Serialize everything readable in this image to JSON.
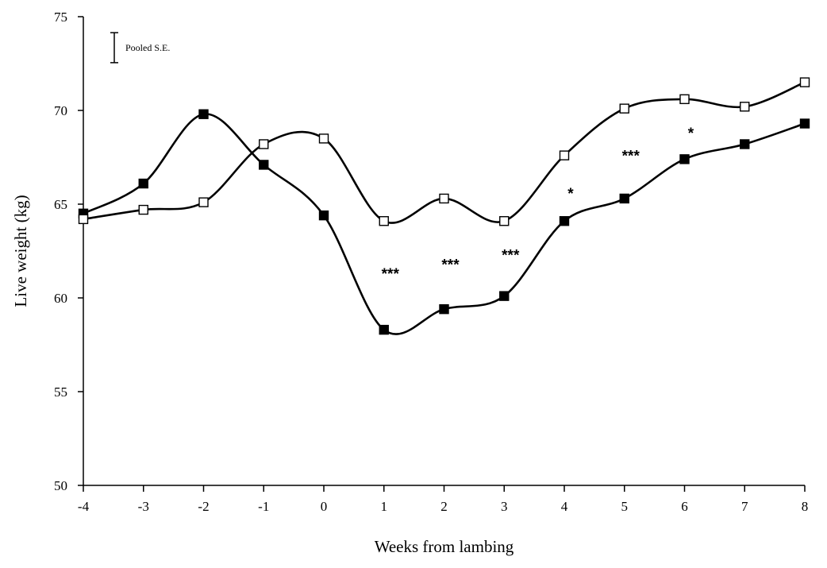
{
  "chart_data": {
    "type": "line",
    "title": "",
    "xlabel": "Weeks from lambing",
    "ylabel": "Live weight (kg)",
    "x": [
      -4,
      -3,
      -2,
      -1,
      0,
      1,
      2,
      3,
      4,
      5,
      6,
      7,
      8
    ],
    "xlim": [
      -4,
      8
    ],
    "ylim": [
      50,
      75
    ],
    "yticks": [
      50,
      55,
      60,
      65,
      70,
      75
    ],
    "grid": false,
    "series": [
      {
        "marker": "filled-square",
        "color": "#000000",
        "values": [
          64.5,
          66.1,
          69.8,
          67.1,
          64.4,
          58.3,
          59.4,
          60.1,
          64.1,
          65.3,
          67.4,
          68.2,
          69.3
        ]
      },
      {
        "marker": "open-square",
        "color": "#000000",
        "values": [
          64.2,
          64.7,
          65.1,
          68.2,
          68.5,
          64.1,
          65.3,
          64.1,
          67.6,
          70.1,
          70.6,
          70.2,
          71.5
        ]
      }
    ],
    "annotations": [
      {
        "text": "***",
        "x": 1,
        "y": 61.6
      },
      {
        "text": "***",
        "x": 2,
        "y": 62.1
      },
      {
        "text": "***",
        "x": 3,
        "y": 62.6
      },
      {
        "text": "*",
        "x": 4,
        "y": 65.9
      },
      {
        "text": "***",
        "x": 5,
        "y": 67.9
      },
      {
        "text": "*",
        "x": 6,
        "y": 69.1
      }
    ],
    "legend": {
      "text": "Pooled S.E.",
      "placement": "top-left",
      "se_value": 0.8
    }
  }
}
